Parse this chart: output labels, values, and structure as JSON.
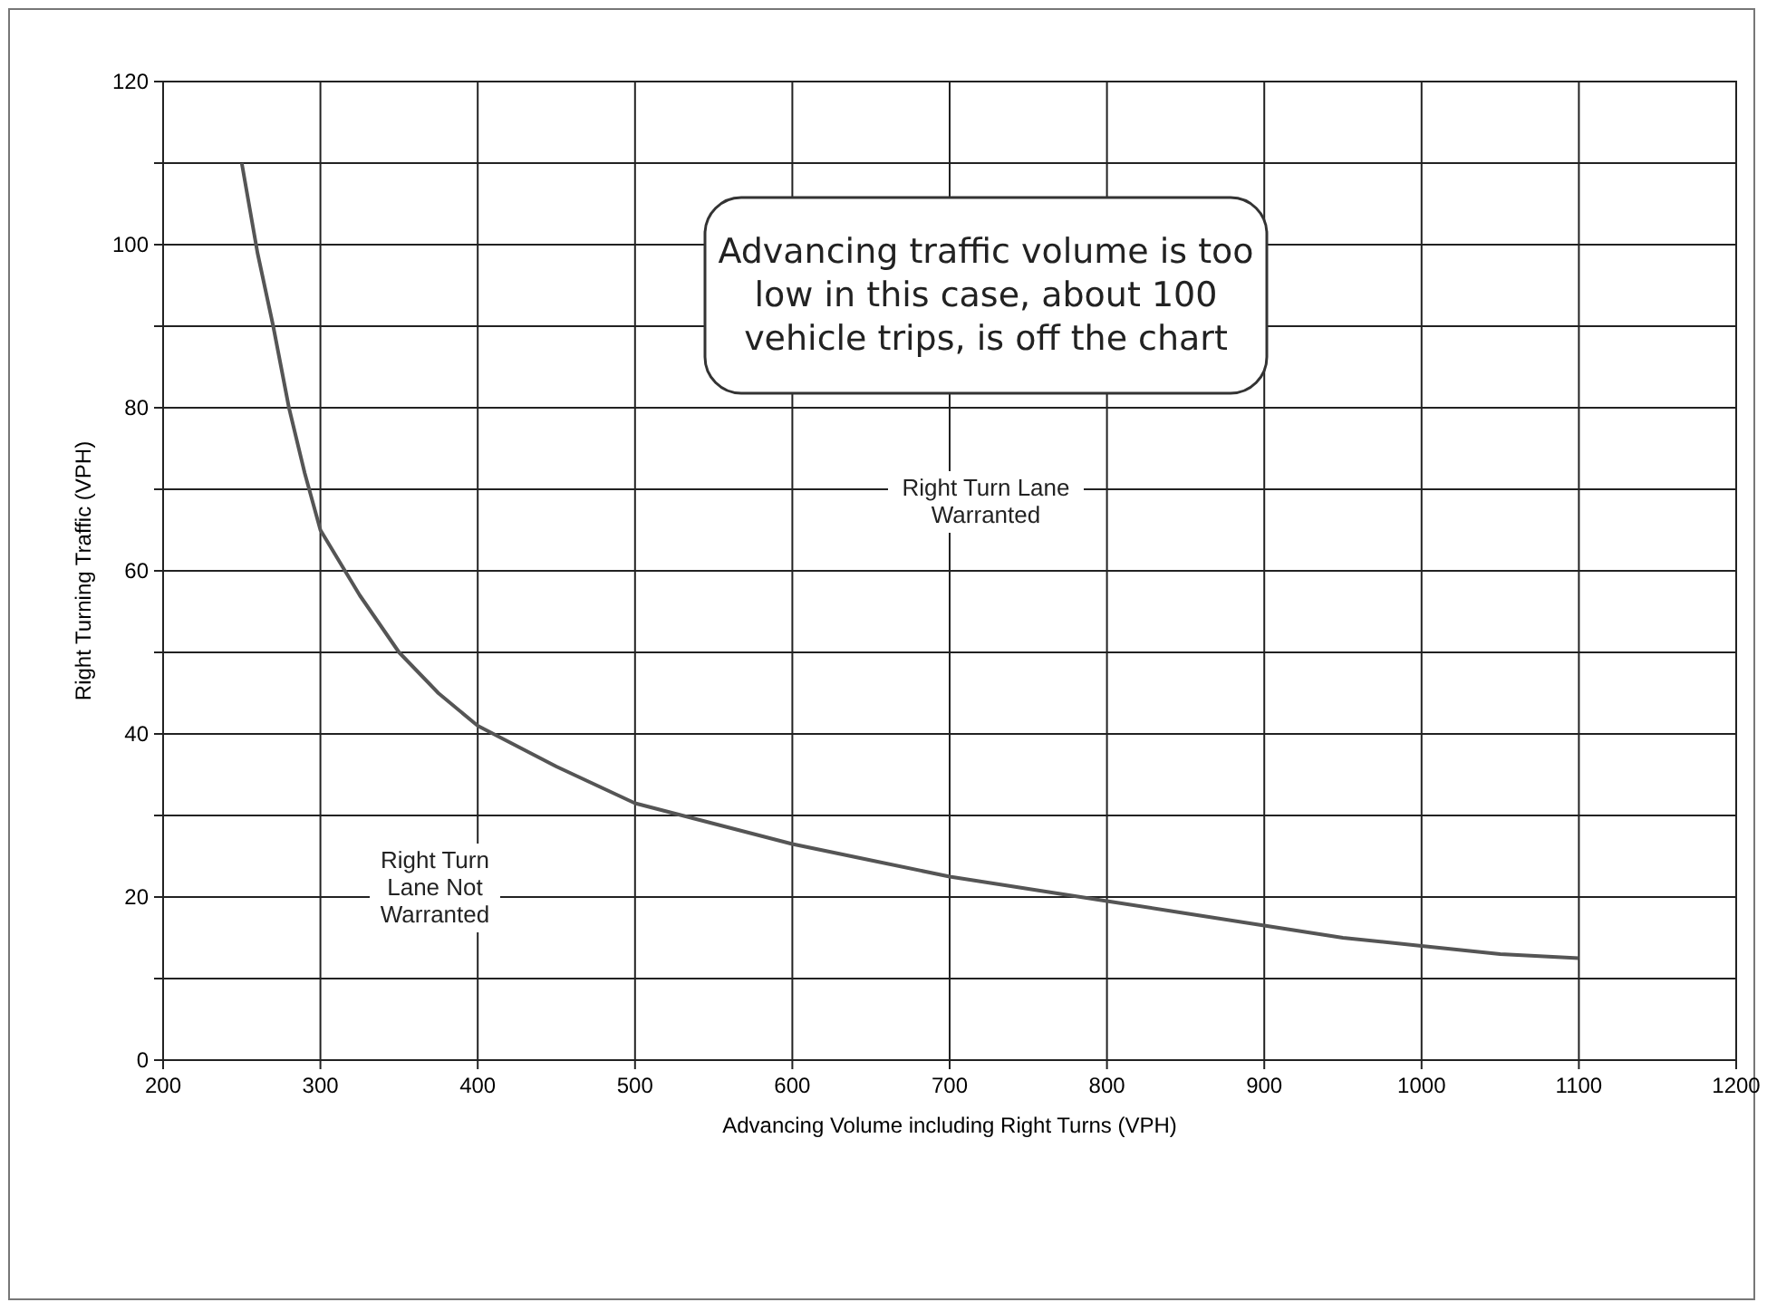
{
  "chart_data": {
    "type": "line",
    "xlabel": "Advancing Volume including Right Turns (VPH)",
    "ylabel": "Right Turning Traffic (VPH)",
    "xlim": [
      200,
      1200
    ],
    "xticks": [
      200,
      300,
      400,
      500,
      600,
      700,
      800,
      900,
      1000,
      1100,
      1200
    ],
    "ylim": [
      0,
      120
    ],
    "yticks": [
      0,
      {
        "value": 10,
        "label": null
      },
      20,
      {
        "value": 30,
        "label": null
      },
      40,
      {
        "value": 50,
        "label": null
      },
      60,
      {
        "value": 70,
        "label": null
      },
      80,
      {
        "value": 90,
        "label": null
      },
      100,
      {
        "value": 110,
        "label": null
      },
      120
    ],
    "grid": true,
    "marker": "none",
    "line_style": "solid",
    "series": [
      {
        "color": "#555555",
        "x": [
          250,
          260,
          270,
          280,
          290,
          300,
          325,
          350,
          375,
          400,
          450,
          500,
          550,
          600,
          650,
          700,
          750,
          800,
          850,
          900,
          950,
          1000,
          1050,
          1100
        ],
        "values": [
          110,
          99,
          90,
          80,
          72,
          65,
          57,
          50,
          45,
          41,
          36,
          31.5,
          29,
          26.5,
          24.5,
          22.5,
          21,
          19.5,
          18,
          16.5,
          15,
          14,
          13,
          12.5
        ]
      }
    ],
    "annotations": [
      "Advancing traffic volume is too low in this case, about 100 vehicle trips, is off the chart",
      "Right Turn Lane Warranted",
      "Right Turn Lane Not Warranted"
    ]
  }
}
